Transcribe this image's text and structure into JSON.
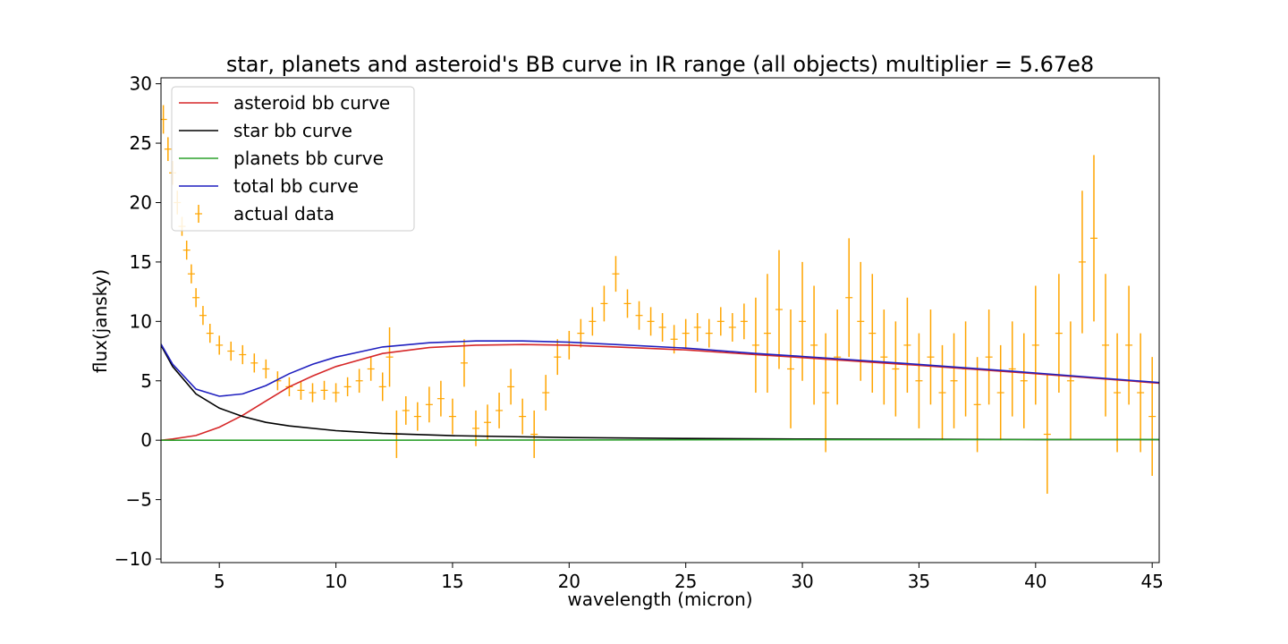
{
  "chart_data": {
    "type": "line",
    "title": "star, planets and asteroid's BB curve in IR range (all objects) multiplier = 5.67e8",
    "xlabel": "wavelength (micron)",
    "ylabel": "flux(jansky)",
    "xlim": [
      2.5,
      45.3
    ],
    "ylim": [
      -10.3,
      30.5
    ],
    "xticks": [
      5,
      10,
      15,
      20,
      25,
      30,
      35,
      40,
      45
    ],
    "yticks": [
      -10,
      -5,
      0,
      5,
      10,
      15,
      20,
      25,
      30
    ],
    "legend_position": "upper-left",
    "grid": false,
    "series": [
      {
        "name": "asteroid bb curve",
        "color": "#d62728",
        "x": [
          2.5,
          3,
          4,
          5,
          6,
          7,
          8,
          9,
          10,
          12,
          14,
          16,
          18,
          20,
          22,
          25,
          28,
          30,
          35,
          40,
          45.3
        ],
        "y": [
          0.0,
          0.1,
          0.4,
          1.1,
          2.1,
          3.3,
          4.5,
          5.4,
          6.2,
          7.3,
          7.8,
          8.0,
          8.05,
          8.0,
          7.85,
          7.6,
          7.2,
          6.95,
          6.3,
          5.6,
          4.8
        ]
      },
      {
        "name": "star bb curve",
        "color": "#000000",
        "x": [
          2.5,
          3,
          4,
          5,
          6,
          7,
          8,
          10,
          12,
          15,
          20,
          25,
          30,
          35,
          40,
          45.3
        ],
        "y": [
          8.0,
          6.2,
          3.9,
          2.7,
          2.0,
          1.5,
          1.2,
          0.8,
          0.57,
          0.38,
          0.22,
          0.15,
          0.1,
          0.08,
          0.06,
          0.05
        ]
      },
      {
        "name": "planets bb curve",
        "color": "#2ca02c",
        "x": [
          2.5,
          10,
          20,
          30,
          40,
          45.3
        ],
        "y": [
          0.0,
          0.0,
          0.02,
          0.04,
          0.05,
          0.06
        ]
      },
      {
        "name": "total bb curve",
        "color": "#1f1fbf",
        "x": [
          2.5,
          3,
          4,
          5,
          6,
          7,
          8,
          9,
          10,
          12,
          14,
          16,
          18,
          20,
          22,
          25,
          28,
          30,
          35,
          40,
          45.3
        ],
        "y": [
          8.1,
          6.4,
          4.3,
          3.7,
          3.9,
          4.6,
          5.6,
          6.4,
          7.0,
          7.85,
          8.2,
          8.35,
          8.35,
          8.25,
          8.05,
          7.75,
          7.3,
          7.05,
          6.38,
          5.66,
          4.85
        ]
      }
    ],
    "errorbar_series": {
      "name": "actual data",
      "color": "#ffa500",
      "points": [
        [
          2.6,
          27.0,
          1.2
        ],
        [
          2.8,
          24.5,
          1.0
        ],
        [
          3.0,
          22.5,
          1.0
        ],
        [
          3.2,
          20.0,
          1.0
        ],
        [
          3.4,
          18.0,
          0.8
        ],
        [
          3.6,
          16.0,
          0.8
        ],
        [
          3.8,
          14.0,
          0.8
        ],
        [
          4.0,
          12.0,
          0.8
        ],
        [
          4.3,
          10.5,
          0.8
        ],
        [
          4.6,
          9.0,
          0.8
        ],
        [
          5.0,
          8.0,
          0.8
        ],
        [
          5.5,
          7.5,
          0.8
        ],
        [
          6.0,
          7.2,
          0.8
        ],
        [
          6.5,
          6.5,
          0.8
        ],
        [
          7.0,
          6.0,
          0.8
        ],
        [
          7.5,
          5.0,
          0.8
        ],
        [
          8.0,
          4.5,
          0.8
        ],
        [
          8.5,
          4.2,
          0.8
        ],
        [
          9.0,
          4.0,
          0.8
        ],
        [
          9.5,
          4.2,
          0.8
        ],
        [
          10.0,
          4.0,
          0.8
        ],
        [
          10.5,
          4.5,
          0.8
        ],
        [
          11.0,
          5.0,
          1.0
        ],
        [
          11.5,
          6.0,
          1.0
        ],
        [
          12.0,
          4.5,
          1.2
        ],
        [
          12.3,
          7.0,
          2.5
        ],
        [
          12.6,
          0.5,
          2.0
        ],
        [
          13.0,
          2.5,
          1.2
        ],
        [
          13.5,
          2.0,
          1.2
        ],
        [
          14.0,
          3.0,
          1.5
        ],
        [
          14.5,
          3.5,
          1.5
        ],
        [
          15.0,
          2.0,
          1.5
        ],
        [
          15.5,
          6.5,
          2.0
        ],
        [
          16.0,
          1.0,
          1.5
        ],
        [
          16.5,
          1.5,
          1.5
        ],
        [
          17.0,
          2.5,
          1.5
        ],
        [
          17.5,
          4.5,
          1.5
        ],
        [
          18.0,
          2.0,
          1.5
        ],
        [
          18.5,
          0.5,
          2.0
        ],
        [
          19.0,
          4.0,
          1.5
        ],
        [
          19.5,
          7.0,
          1.5
        ],
        [
          20.0,
          8.0,
          1.2
        ],
        [
          20.5,
          9.0,
          1.2
        ],
        [
          21.0,
          10.0,
          1.2
        ],
        [
          21.5,
          11.5,
          1.5
        ],
        [
          22.0,
          14.0,
          1.5
        ],
        [
          22.5,
          11.5,
          1.2
        ],
        [
          23.0,
          10.5,
          1.2
        ],
        [
          23.5,
          10.0,
          1.2
        ],
        [
          24.0,
          9.5,
          1.2
        ],
        [
          24.5,
          8.5,
          1.2
        ],
        [
          25.0,
          9.0,
          1.2
        ],
        [
          25.5,
          9.5,
          1.2
        ],
        [
          26.0,
          9.0,
          1.2
        ],
        [
          26.5,
          10.0,
          1.2
        ],
        [
          27.0,
          9.5,
          1.2
        ],
        [
          27.5,
          10.0,
          1.5
        ],
        [
          28.0,
          8.0,
          4.0
        ],
        [
          28.5,
          9.0,
          5.0
        ],
        [
          29.0,
          11.0,
          5.0
        ],
        [
          29.5,
          6.0,
          5.0
        ],
        [
          30.0,
          10.0,
          5.0
        ],
        [
          30.5,
          8.0,
          5.0
        ],
        [
          31.0,
          4.0,
          5.0
        ],
        [
          31.5,
          7.0,
          4.0
        ],
        [
          32.0,
          12.0,
          5.0
        ],
        [
          32.5,
          10.0,
          5.0
        ],
        [
          33.0,
          9.0,
          5.0
        ],
        [
          33.5,
          7.0,
          4.0
        ],
        [
          34.0,
          6.0,
          4.0
        ],
        [
          34.5,
          8.0,
          4.0
        ],
        [
          35.0,
          5.0,
          4.0
        ],
        [
          35.5,
          7.0,
          4.0
        ],
        [
          36.0,
          4.0,
          4.0
        ],
        [
          36.5,
          5.0,
          4.0
        ],
        [
          37.0,
          6.0,
          4.0
        ],
        [
          37.5,
          3.0,
          4.0
        ],
        [
          38.0,
          7.0,
          4.0
        ],
        [
          38.5,
          4.0,
          4.0
        ],
        [
          39.0,
          6.0,
          4.0
        ],
        [
          39.5,
          5.0,
          4.0
        ],
        [
          40.0,
          8.0,
          5.0
        ],
        [
          40.5,
          0.5,
          5.0
        ],
        [
          41.0,
          9.0,
          5.0
        ],
        [
          41.5,
          5.0,
          5.0
        ],
        [
          42.0,
          15.0,
          6.0
        ],
        [
          42.5,
          17.0,
          7.0
        ],
        [
          43.0,
          8.0,
          6.0
        ],
        [
          43.5,
          4.0,
          5.0
        ],
        [
          44.0,
          8.0,
          5.0
        ],
        [
          44.5,
          4.0,
          5.0
        ],
        [
          45.0,
          2.0,
          5.0
        ]
      ]
    }
  }
}
